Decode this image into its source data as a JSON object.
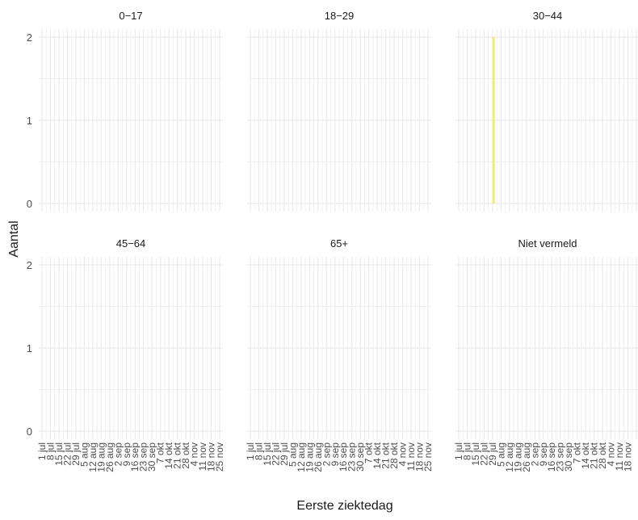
{
  "chart_data": {
    "type": "bar",
    "xlabel": "Eerste ziektedag",
    "ylabel": "Aantal",
    "ylim": [
      0,
      2
    ],
    "y_ticks": [
      "0",
      "1",
      "2"
    ],
    "grid": true,
    "facets": [
      {
        "title": "0−17",
        "x_ticks": [
          "1 jul",
          "8 jul",
          "15 jul",
          "22 jul",
          "29 jul",
          "5 aug",
          "12 aug",
          "19 aug",
          "26 aug",
          "2 sep",
          "9 sep",
          "16 sep",
          "23 sep",
          "30 sep",
          "7 okt",
          "14 okt",
          "21 okt",
          "28 okt",
          "4 nov",
          "11 nov",
          "18 nov",
          "25 nov"
        ],
        "bars": []
      },
      {
        "title": "18−29",
        "x_ticks": [
          "1 jul",
          "8 jul",
          "15 jul",
          "22 jul",
          "29 jul",
          "5 aug",
          "12 aug",
          "19 aug",
          "26 aug",
          "2 sep",
          "9 sep",
          "16 sep",
          "23 sep",
          "30 sep",
          "7 okt",
          "14 okt",
          "21 okt",
          "28 okt",
          "4 nov",
          "11 nov",
          "18 nov",
          "25 nov"
        ],
        "bars": []
      },
      {
        "title": "30−44",
        "x_ticks": [
          "1 jul",
          "8 jul",
          "15 jul",
          "22 jul",
          "29 jul",
          "5 aug",
          "12 aug",
          "19 aug",
          "26 aug",
          "2 sep",
          "9 sep",
          "16 sep",
          "23 sep",
          "30 sep",
          "7 okt",
          "14 okt",
          "21 okt",
          "28 okt",
          "4 nov",
          "11 nov",
          "18 nov"
        ],
        "bars": [
          {
            "date_index": 29,
            "value": 2
          }
        ]
      },
      {
        "title": "45−64",
        "x_ticks": [],
        "bars": []
      },
      {
        "title": "65+",
        "x_ticks": [],
        "bars": []
      },
      {
        "title": "Niet vermeld",
        "x_ticks": [],
        "bars": []
      }
    ],
    "colors": {
      "bar": "#f2ef5a",
      "grid": "#ebebeb"
    }
  }
}
